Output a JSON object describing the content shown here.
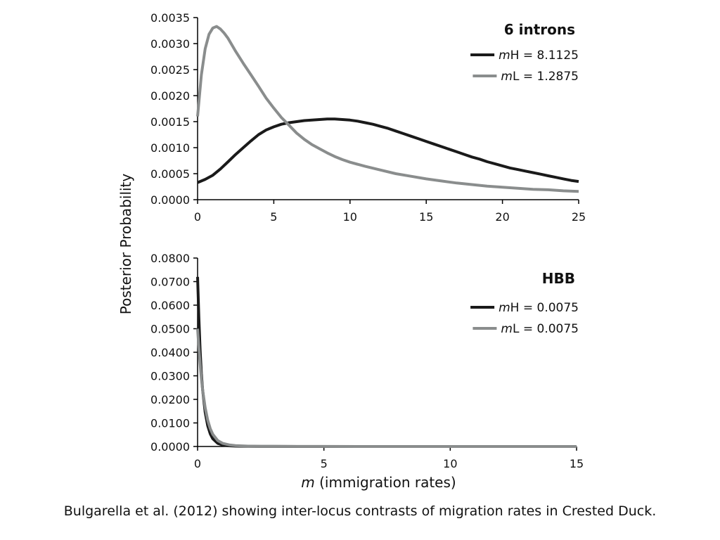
{
  "caption": "Bulgarella et al. (2012) showing inter-locus contrasts of migration rates in Crested Duck.",
  "shared_ylabel": "Posterior Probability",
  "colors": {
    "mH": "#1a1a1a",
    "mL": "#8a8d8d",
    "axis": "#000000"
  },
  "chart_data": [
    {
      "type": "line",
      "title": "6 introns",
      "xlabel": "",
      "xlim": [
        0,
        25
      ],
      "ylim": [
        0,
        0.0035
      ],
      "xticks": [
        "0",
        "5",
        "10",
        "15",
        "20",
        "25"
      ],
      "yticks": [
        "0.0000",
        "0.0005",
        "0.0010",
        "0.0015",
        "0.0020",
        "0.0025",
        "0.0030",
        "0.0035"
      ],
      "legend_position": "top-right",
      "series": [
        {
          "name": "mH = 8.1125",
          "name_prefix": "m",
          "name_rest": "H = 8.1125",
          "color": "#1a1a1a",
          "x": [
            0,
            0.5,
            1,
            1.5,
            2,
            2.5,
            3,
            3.5,
            4,
            4.5,
            5,
            5.5,
            6,
            6.5,
            7,
            7.5,
            8,
            8.5,
            9,
            9.5,
            10,
            10.5,
            11,
            11.5,
            12,
            12.5,
            13,
            13.5,
            14,
            14.5,
            15,
            15.5,
            16,
            16.5,
            17,
            17.5,
            18,
            18.5,
            19,
            19.5,
            20,
            20.5,
            21,
            21.5,
            22,
            22.5,
            23,
            23.5,
            24,
            24.5,
            25
          ],
          "y": [
            0.00033,
            0.00039,
            0.00047,
            0.00059,
            0.00073,
            0.00087,
            0.001,
            0.00113,
            0.00125,
            0.00134,
            0.0014,
            0.00145,
            0.00148,
            0.0015,
            0.00152,
            0.00153,
            0.00154,
            0.00155,
            0.00155,
            0.00154,
            0.00153,
            0.00151,
            0.00148,
            0.00145,
            0.00141,
            0.00137,
            0.00132,
            0.00127,
            0.00122,
            0.00117,
            0.00112,
            0.00107,
            0.00102,
            0.00097,
            0.00092,
            0.00087,
            0.00082,
            0.00078,
            0.00073,
            0.00069,
            0.00065,
            0.00061,
            0.00058,
            0.00055,
            0.00052,
            0.00049,
            0.00046,
            0.00043,
            0.0004,
            0.00037,
            0.00035
          ]
        },
        {
          "name": "mL = 1.2875",
          "name_prefix": "m",
          "name_rest": "L = 1.2875",
          "color": "#8a8d8d",
          "x": [
            0,
            0.25,
            0.5,
            0.75,
            1,
            1.25,
            1.5,
            1.75,
            2,
            2.5,
            3,
            3.5,
            4,
            4.5,
            5,
            5.5,
            6,
            6.5,
            7,
            7.5,
            8,
            8.5,
            9,
            9.5,
            10,
            11,
            12,
            13,
            14,
            15,
            16,
            17,
            18,
            19,
            20,
            21,
            22,
            23,
            24,
            25
          ],
          "y": [
            0.0016,
            0.0024,
            0.0029,
            0.00318,
            0.0033,
            0.00333,
            0.00328,
            0.0032,
            0.0031,
            0.00285,
            0.00262,
            0.0024,
            0.00218,
            0.00195,
            0.00176,
            0.00158,
            0.00143,
            0.00128,
            0.00116,
            0.00106,
            0.00098,
            0.0009,
            0.00083,
            0.00077,
            0.00072,
            0.00064,
            0.00057,
            0.0005,
            0.00045,
            0.0004,
            0.00036,
            0.00032,
            0.00029,
            0.00026,
            0.00024,
            0.00022,
            0.0002,
            0.00019,
            0.00017,
            0.00016
          ]
        }
      ]
    },
    {
      "type": "line",
      "title": "HBB",
      "xlabel_prefix": "m",
      "xlabel": "(immigration rates)",
      "xlim": [
        0,
        15
      ],
      "ylim": [
        0,
        0.08
      ],
      "xticks": [
        "0",
        "5",
        "10",
        "15"
      ],
      "yticks": [
        "0.0000",
        "0.0100",
        "0.0200",
        "0.0300",
        "0.0400",
        "0.0500",
        "0.0600",
        "0.0700",
        "0.0800"
      ],
      "legend_position": "top-right",
      "series": [
        {
          "name": "mH = 0.0075",
          "name_prefix": "m",
          "name_rest": "H = 0.0075",
          "color": "#1a1a1a",
          "x": [
            0,
            0.05,
            0.1,
            0.15,
            0.2,
            0.3,
            0.4,
            0.5,
            0.6,
            0.8,
            1,
            1.25,
            1.5,
            2,
            2.5,
            3,
            4,
            5,
            7,
            10,
            15
          ],
          "y": [
            0.072,
            0.055,
            0.041,
            0.031,
            0.024,
            0.0145,
            0.0088,
            0.0054,
            0.0033,
            0.0013,
            0.0006,
            0.0003,
            0.00015,
            6e-05,
            3e-05,
            2e-05,
            1e-05,
            1e-05,
            5e-06,
            3e-06,
            2e-06
          ]
        },
        {
          "name": "mL = 0.0075",
          "name_prefix": "m",
          "name_rest": "L = 0.0075",
          "color": "#8a8d8d",
          "x": [
            0,
            0.05,
            0.1,
            0.15,
            0.2,
            0.3,
            0.4,
            0.5,
            0.6,
            0.8,
            1,
            1.25,
            1.5,
            2,
            2.5,
            3,
            4,
            5,
            7,
            10,
            15
          ],
          "y": [
            0.05,
            0.042,
            0.035,
            0.029,
            0.024,
            0.0165,
            0.0112,
            0.0076,
            0.0052,
            0.0025,
            0.0013,
            0.0007,
            0.0004,
            0.00015,
            8e-05,
            5e-05,
            3e-05,
            2e-05,
            1e-05,
            5e-06,
            3e-06
          ]
        }
      ]
    }
  ]
}
